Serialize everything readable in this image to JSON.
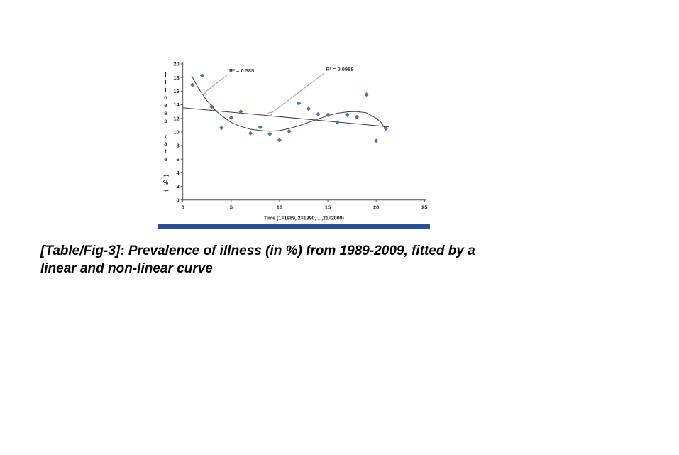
{
  "chart_data": {
    "type": "scatter",
    "title": "",
    "xlabel": "Time (1=1989, 2=1990, ...,21=2009)",
    "ylabel": "Illness rate (%)",
    "xlim": [
      0,
      25
    ],
    "ylim": [
      0,
      20
    ],
    "x_ticks": [
      0,
      5,
      10,
      15,
      20,
      25
    ],
    "y_ticks": [
      0,
      2,
      4,
      6,
      8,
      10,
      12,
      14,
      16,
      18,
      20
    ],
    "grid": false,
    "legend": "none",
    "x": [
      1,
      2,
      3,
      4,
      5,
      6,
      7,
      8,
      9,
      10,
      11,
      12,
      13,
      14,
      15,
      16,
      17,
      18,
      19,
      20,
      21
    ],
    "series": [
      {
        "name": "Illness rate (%)",
        "marker": "diamond",
        "color": "#4b72a9",
        "values": [
          16.9,
          18.3,
          13.7,
          10.6,
          12.1,
          13.0,
          9.8,
          10.7,
          9.7,
          8.8,
          10.1,
          14.2,
          13.4,
          12.6,
          12.5,
          11.4,
          12.5,
          12.2,
          15.5,
          8.7,
          10.5
        ]
      }
    ],
    "trendlines": [
      {
        "name": "non-linear (polynomial) fit",
        "r2_label": "R² = 0.585",
        "color": "#3f3f3f",
        "points": [
          [
            0.9,
            18.3
          ],
          [
            1.5,
            16.7
          ],
          [
            2,
            15.6
          ],
          [
            2.5,
            14.6
          ],
          [
            3,
            13.75
          ],
          [
            3.5,
            13.0
          ],
          [
            4,
            12.4
          ],
          [
            5,
            11.4
          ],
          [
            6,
            10.8
          ],
          [
            7,
            10.4
          ],
          [
            8,
            10.2
          ],
          [
            9,
            10.1
          ],
          [
            10,
            10.2
          ],
          [
            11,
            10.5
          ],
          [
            12,
            10.9
          ],
          [
            13,
            11.4
          ],
          [
            14,
            11.9
          ],
          [
            15,
            12.4
          ],
          [
            16,
            12.75
          ],
          [
            17,
            12.95
          ],
          [
            18,
            13.0
          ],
          [
            19,
            12.8
          ],
          [
            20,
            12.0
          ],
          [
            20.5,
            11.4
          ],
          [
            21,
            10.35
          ]
        ]
      },
      {
        "name": "linear fit",
        "r2_label": "R² = 0.0988",
        "color": "#3f3f3f",
        "points": [
          [
            0,
            13.55
          ],
          [
            21.3,
            10.76
          ]
        ]
      }
    ],
    "annotation_arrow_color": "#9b9b9b",
    "axis_color": "#555555"
  },
  "divider": {
    "color": "#2a4f96"
  },
  "caption": {
    "line1": "[Table/Fig-3]: Prevalence of illness (in %) from 1989-2009, fitted by a",
    "line2": "linear and non-linear curve"
  }
}
